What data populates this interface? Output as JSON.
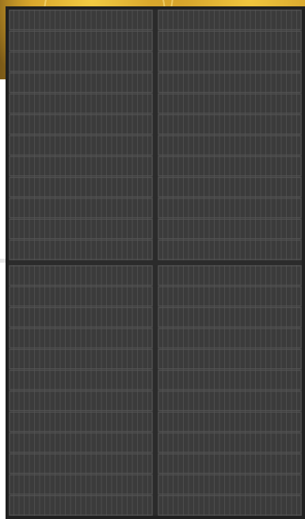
{
  "image": {
    "subject": "solar-panel",
    "background_color": "#ffffff",
    "backdrop_colors": [
      "#7b5a18",
      "#d8a72e",
      "#f3cc43"
    ],
    "panel_colors": {
      "frame": "#202020",
      "surface": "#3b3b3b",
      "cell_line": "#555555",
      "busbar": "#2b2b2b"
    },
    "panel_layout": {
      "halves": 2,
      "columns": 2,
      "rows_per_half": 12,
      "vertical_lines_per_column": 28
    }
  }
}
